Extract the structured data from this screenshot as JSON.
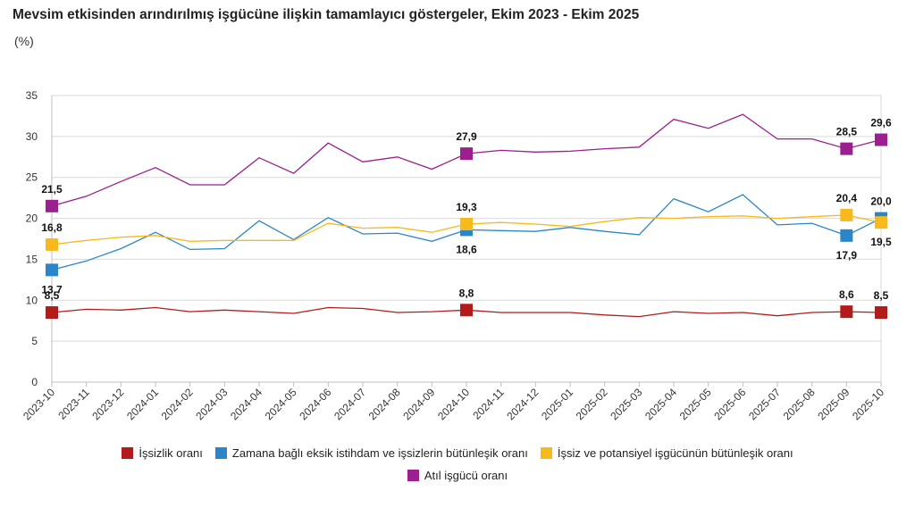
{
  "title": "Mevsim etkisinden arındırılmış işgücüne ilişkin tamamlayıcı göstergeler, Ekim 2023 - Ekim 2025",
  "unit": "(%)",
  "chart_data": {
    "type": "line",
    "title": "Mevsim etkisinden arındırılmış işgücüne ilişkin tamamlayıcı göstergeler, Ekim 2023 - Ekim 2025",
    "ylabel": "(%)",
    "ylim": [
      0,
      35
    ],
    "yticks": [
      0,
      5,
      10,
      15,
      20,
      25,
      30,
      35
    ],
    "grid": "horizontal",
    "legend": "bottom",
    "x": [
      "2023-10",
      "2023-11",
      "2023-12",
      "2024-01",
      "2024-02",
      "2024-03",
      "2024-04",
      "2024-05",
      "2024-06",
      "2024-07",
      "2024-08",
      "2024-09",
      "2024-10",
      "2024-11",
      "2024-12",
      "2025-01",
      "2025-02",
      "2025-03",
      "2025-04",
      "2025-05",
      "2025-06",
      "2025-07",
      "2025-08",
      "2025-09",
      "2025-10"
    ],
    "series": [
      {
        "name": "İşsizlik oranı",
        "color": "#b31b1b",
        "values": [
          8.5,
          8.9,
          8.8,
          9.1,
          8.6,
          8.8,
          8.6,
          8.4,
          9.1,
          9.0,
          8.5,
          8.6,
          8.8,
          8.5,
          8.5,
          8.5,
          8.2,
          8.0,
          8.6,
          8.4,
          8.5,
          8.1,
          8.5,
          8.6,
          8.5
        ],
        "labels": [
          {
            "i": 0,
            "text": "8,5",
            "pos": "above"
          },
          {
            "i": 12,
            "text": "8,8",
            "pos": "above"
          },
          {
            "i": 23,
            "text": "8,6",
            "pos": "above"
          },
          {
            "i": 24,
            "text": "8,5",
            "pos": "above"
          }
        ]
      },
      {
        "name": "Zamana bağlı eksik istihdam ve işsizlerin bütünleşik oranı",
        "color": "#2a86c8",
        "values": [
          13.7,
          14.8,
          16.3,
          18.3,
          16.2,
          16.3,
          19.7,
          17.4,
          20.1,
          18.1,
          18.2,
          17.2,
          18.6,
          18.5,
          18.4,
          18.9,
          18.4,
          18.0,
          22.4,
          20.8,
          22.9,
          19.2,
          19.4,
          17.9,
          20.0
        ],
        "labels": [
          {
            "i": 0,
            "text": "13,7",
            "pos": "below"
          },
          {
            "i": 12,
            "text": "18,6",
            "pos": "below"
          },
          {
            "i": 23,
            "text": "17,9",
            "pos": "below"
          },
          {
            "i": 24,
            "text": "20,0",
            "pos": "above"
          }
        ]
      },
      {
        "name": "İşsiz ve potansiyel işgücünün bütünleşik oranı",
        "color": "#f7b91c",
        "values": [
          16.8,
          17.3,
          17.7,
          17.9,
          17.2,
          17.3,
          17.3,
          17.3,
          19.4,
          18.8,
          18.9,
          18.3,
          19.3,
          19.5,
          19.3,
          19.0,
          19.6,
          20.1,
          20.0,
          20.2,
          20.3,
          20.0,
          20.2,
          20.4,
          19.5
        ],
        "labels": [
          {
            "i": 0,
            "text": "16,8",
            "pos": "above"
          },
          {
            "i": 12,
            "text": "19,3",
            "pos": "above"
          },
          {
            "i": 23,
            "text": "20,4",
            "pos": "above"
          },
          {
            "i": 24,
            "text": "19,5",
            "pos": "below"
          }
        ]
      },
      {
        "name": "Atıl işgücü oranı",
        "color": "#9b1f8f",
        "values": [
          21.5,
          22.7,
          24.5,
          26.2,
          24.1,
          24.1,
          27.4,
          25.5,
          29.2,
          26.9,
          27.5,
          26.0,
          27.9,
          28.3,
          28.1,
          28.2,
          28.5,
          28.7,
          32.1,
          31.0,
          32.7,
          29.7,
          29.7,
          28.5,
          29.6
        ],
        "labels": [
          {
            "i": 0,
            "text": "21,5",
            "pos": "above"
          },
          {
            "i": 12,
            "text": "27,9",
            "pos": "above"
          },
          {
            "i": 23,
            "text": "28,5",
            "pos": "above"
          },
          {
            "i": 24,
            "text": "29,6",
            "pos": "above"
          }
        ]
      }
    ],
    "marker_indices": [
      0,
      12,
      23,
      24
    ]
  }
}
